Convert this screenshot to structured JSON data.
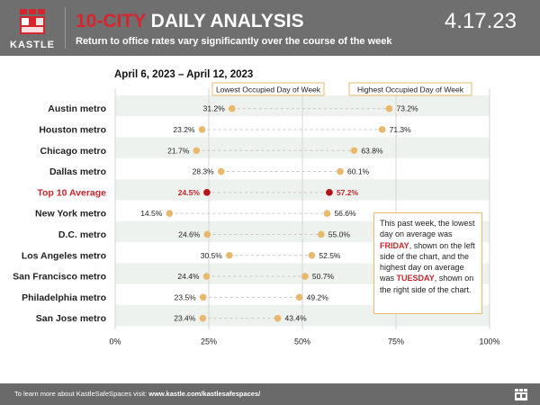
{
  "header": {
    "logo_text": "KASTLE",
    "title_accent": "10-CITY",
    "title_rest": " DAILY ANALYSIS",
    "subtitle": "Return to office rates vary significantly over the course of the week",
    "date_stamp": "4.17.23",
    "colors": {
      "header_bg": "#6f6f6f",
      "accent_red": "#d4262c"
    }
  },
  "date_range": "April 6, 2023 – April 12, 2023",
  "legend": {
    "low_label": "Lowest Occupied Day of Week",
    "high_label": "Highest Occupied Day of Week"
  },
  "chart_data": {
    "type": "dumbbell",
    "xlim": [
      0,
      100
    ],
    "x_ticks": [
      "0%",
      "25%",
      "50%",
      "75%",
      "100%"
    ],
    "x_tick_values": [
      0,
      25,
      50,
      75,
      100
    ],
    "grid": "vertical",
    "series": [
      {
        "name": "Lowest Occupied Day of Week",
        "color": "#e8b86c"
      },
      {
        "name": "Highest Occupied Day of Week",
        "color": "#e8b86c"
      }
    ],
    "rows": [
      {
        "label": "Austin metro",
        "low": 31.2,
        "high": 73.2,
        "low_label": "31.2%",
        "high_label": "73.2%",
        "highlight": false
      },
      {
        "label": "Houston metro",
        "low": 23.2,
        "high": 71.3,
        "low_label": "23.2%",
        "high_label": "71.3%",
        "highlight": false
      },
      {
        "label": "Chicago metro",
        "low": 21.7,
        "high": 63.8,
        "low_label": "21.7%",
        "high_label": "63.8%",
        "highlight": false
      },
      {
        "label": "Dallas metro",
        "low": 28.3,
        "high": 60.1,
        "low_label": "28.3%",
        "high_label": "60.1%",
        "highlight": false
      },
      {
        "label": "Top 10 Average",
        "low": 24.5,
        "high": 57.2,
        "low_label": "24.5%",
        "high_label": "57.2%",
        "highlight": true
      },
      {
        "label": "New York metro",
        "low": 14.5,
        "high": 56.6,
        "low_label": "14.5%",
        "high_label": "56.6%",
        "highlight": false
      },
      {
        "label": "D.C. metro",
        "low": 24.6,
        "high": 55.0,
        "low_label": "24.6%",
        "high_label": "55.0%",
        "highlight": false
      },
      {
        "label": "Los Angeles metro",
        "low": 30.5,
        "high": 52.5,
        "low_label": "30.5%",
        "high_label": "52.5%",
        "highlight": false
      },
      {
        "label": "San Francisco metro",
        "low": 24.4,
        "high": 50.7,
        "low_label": "24.4%",
        "high_label": "50.7%",
        "highlight": false
      },
      {
        "label": "Philadelphia metro",
        "low": 23.5,
        "high": 49.2,
        "low_label": "23.5%",
        "high_label": "49.2%",
        "highlight": false
      },
      {
        "label": "San Jose metro",
        "low": 23.4,
        "high": 43.4,
        "low_label": "23.4%",
        "high_label": "43.4%",
        "highlight": false
      }
    ],
    "colors": {
      "dot": "#e8b86c",
      "highlight_dot": "#b5121b",
      "highlight_text": "#c4262c",
      "stripe": "#eef2ee"
    }
  },
  "info_box": {
    "part1": "This past week, the lowest day on average was ",
    "low_day": "FRIDAY",
    "part2": ", shown on the left side of the chart, and the highest day on average was ",
    "high_day": "TUESDAY",
    "part3": ", shown on the right side of the chart."
  },
  "footer": {
    "text": "To learn more about KastleSafeSpaces visit: ",
    "link": "www.kastle.com/kastlesafespaces/"
  }
}
